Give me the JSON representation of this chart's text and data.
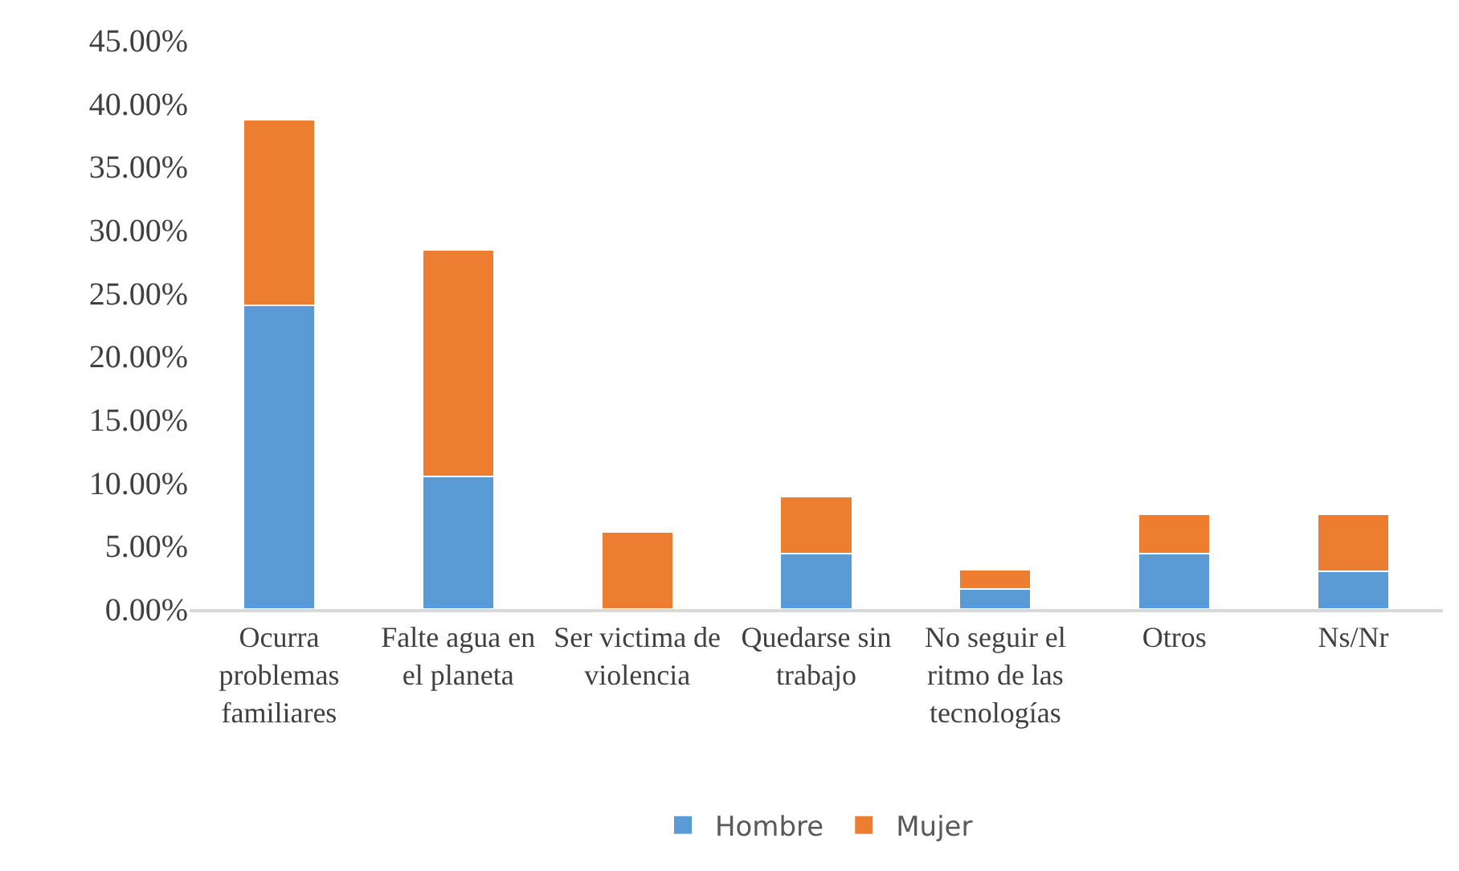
{
  "chart_data": {
    "type": "bar",
    "stacked": true,
    "categories": [
      "Ocurra problemas familiares",
      "Falte agua en el planeta",
      "Ser victima de violencia",
      "Quedarse sin trabajo",
      "No seguir el ritmo de las tecnologías",
      "Otros",
      "Ns/Nr"
    ],
    "series": [
      {
        "name": "Hombre",
        "color": "#5b9bd5",
        "values": [
          24.0,
          10.5,
          0.0,
          4.4,
          1.6,
          4.4,
          3.0
        ]
      },
      {
        "name": "Mujer",
        "color": "#ed7d31",
        "values": [
          14.7,
          17.9,
          6.1,
          4.5,
          1.5,
          3.1,
          4.5
        ]
      }
    ],
    "ylim": [
      0,
      45
    ],
    "yticks": [
      {
        "value": 0,
        "label": "0.00%"
      },
      {
        "value": 5,
        "label": "5.00%"
      },
      {
        "value": 10,
        "label": "10.00%"
      },
      {
        "value": 15,
        "label": "15.00%"
      },
      {
        "value": 20,
        "label": "20.00%"
      },
      {
        "value": 25,
        "label": "25.00%"
      },
      {
        "value": 30,
        "label": "30.00%"
      },
      {
        "value": 35,
        "label": "35.00%"
      },
      {
        "value": 40,
        "label": "40.00%"
      },
      {
        "value": 45,
        "label": "45.00%"
      }
    ],
    "legend": "bottom"
  }
}
